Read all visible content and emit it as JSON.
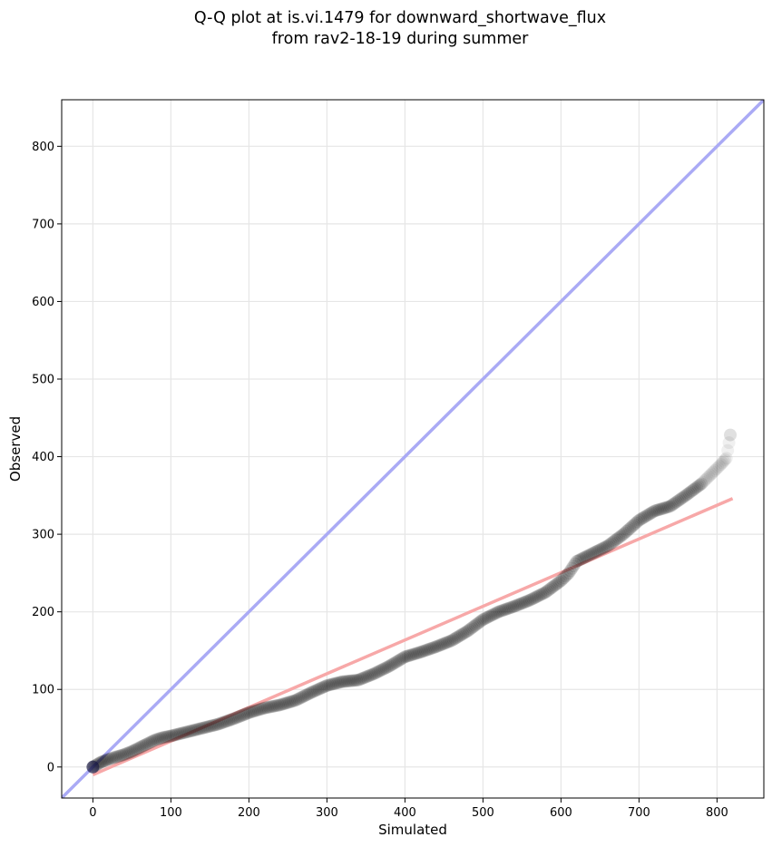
{
  "chart_data": {
    "type": "scatter",
    "title": "Q-Q plot at is.vi.1479 for downward_shortwave_flux",
    "subtitle": "from rav2-18-19 during summer",
    "xlabel": "Simulated",
    "ylabel": "Observed",
    "xlim": [
      -40,
      860
    ],
    "ylim": [
      -40,
      860
    ],
    "xticks": [
      0,
      100,
      200,
      300,
      400,
      500,
      600,
      700,
      800
    ],
    "yticks": [
      0,
      100,
      200,
      300,
      400,
      500,
      600,
      700,
      800
    ],
    "grid": true,
    "series": [
      {
        "name": "quantiles",
        "color": "#000000",
        "x": [
          0,
          5,
          10,
          15,
          20,
          30,
          40,
          50,
          60,
          70,
          80,
          90,
          100,
          120,
          140,
          160,
          180,
          200,
          220,
          240,
          260,
          280,
          300,
          320,
          340,
          360,
          380,
          400,
          420,
          440,
          460,
          480,
          500,
          520,
          540,
          560,
          580,
          600,
          610,
          620,
          640,
          660,
          680,
          700,
          720,
          740,
          760,
          780,
          795,
          805,
          812,
          817
        ],
        "y": [
          0,
          3,
          6,
          8,
          10,
          13,
          16,
          20,
          25,
          30,
          35,
          38,
          40,
          45,
          50,
          55,
          62,
          70,
          76,
          80,
          86,
          96,
          105,
          110,
          112,
          120,
          130,
          142,
          148,
          155,
          163,
          175,
          190,
          200,
          207,
          215,
          225,
          240,
          250,
          265,
          275,
          285,
          300,
          318,
          330,
          336,
          350,
          365,
          380,
          390,
          398,
          428
        ]
      }
    ],
    "reference_lines": [
      {
        "name": "one-to-one line",
        "color": "#aaaaf5",
        "x": [
          -40,
          860
        ],
        "y": [
          -40,
          860
        ]
      },
      {
        "name": "regression fit",
        "color": "#f7a8a8",
        "x": [
          0,
          820
        ],
        "y": [
          -10,
          346
        ]
      }
    ]
  }
}
